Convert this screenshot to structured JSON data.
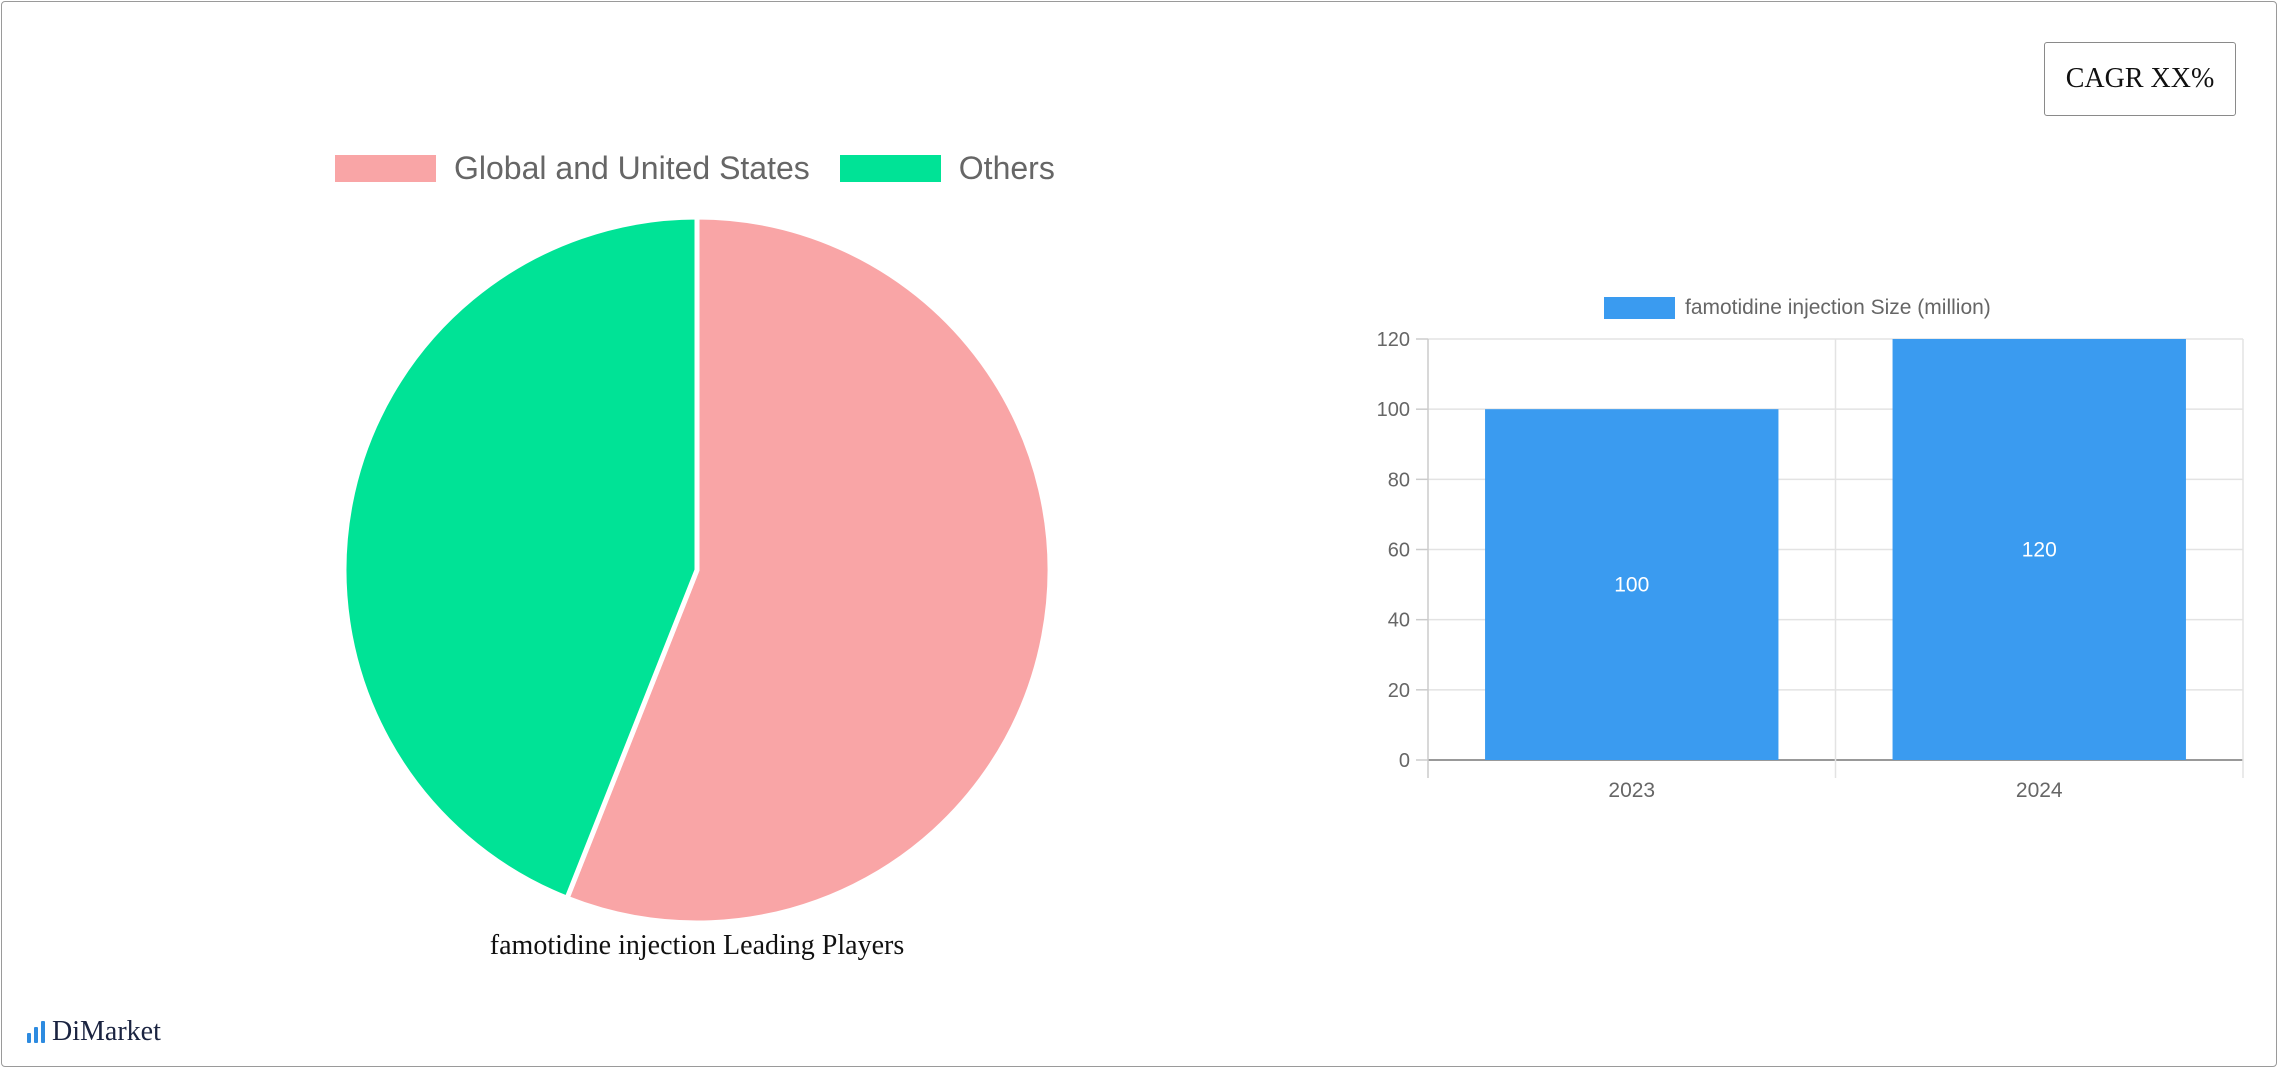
{
  "cagr_label": "CAGR XX%",
  "brand": {
    "name": "DiMarket",
    "icon": "bar-chart-logo-icon",
    "color": "#2d8be0"
  },
  "chart_data": [
    {
      "type": "pie",
      "title": "famotidine injection Leading Players",
      "legend_position": "top",
      "labels": [
        "Global and United States",
        "Others"
      ],
      "values": [
        56,
        44
      ],
      "colors": [
        "#f9a5a6",
        "#00e396"
      ]
    },
    {
      "type": "bar",
      "title": "",
      "legend_position": "top",
      "categories": [
        "2023",
        "2024"
      ],
      "series": [
        {
          "name": "famotidine injection Size (million)",
          "values": [
            100,
            120
          ],
          "color": "#3a9bf0"
        }
      ],
      "ylim": [
        0,
        120
      ],
      "yticks": [
        0,
        20,
        40,
        60,
        80,
        100,
        120
      ],
      "grid": true,
      "xlabel": "",
      "ylabel": ""
    }
  ]
}
